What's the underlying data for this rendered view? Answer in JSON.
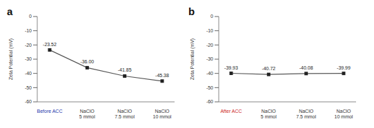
{
  "chart_data": [
    {
      "type": "line",
      "title": "a",
      "ylabel": "Zeta Potential (mV)",
      "categories": [
        "Before ACC",
        "NaClO 5 mmol",
        "NaClO 7.5 mmol",
        "NaClO 10 mmol"
      ],
      "values": [
        -23.52,
        -36.0,
        -41.85,
        -45.38
      ],
      "value_labels": [
        "-23.52",
        "-36.00",
        "-41.85",
        "-45.38"
      ],
      "color": "#555555",
      "marker": "square",
      "data_labels": true,
      "grid": false,
      "ylim": [
        -60,
        0
      ],
      "yticks": [
        -60,
        -50,
        -40,
        -30,
        -20,
        -10,
        0
      ]
    },
    {
      "type": "line",
      "title": "b",
      "ylabel": "Zeta Potential (mV)",
      "categories": [
        "After ACC",
        "NaClO 5 mmol",
        "NaClO 7.5 mmol",
        "NaClO 10 mmol"
      ],
      "values": [
        -39.93,
        -40.72,
        -40.08,
        -39.99
      ],
      "color": "#555555",
      "marker": "square",
      "data_labels": true,
      "grid": false,
      "ylim": [
        -60,
        0
      ],
      "yticks": [
        -60,
        -50,
        -40,
        -30,
        -20,
        -10,
        0
      ]
    }
  ]
}
